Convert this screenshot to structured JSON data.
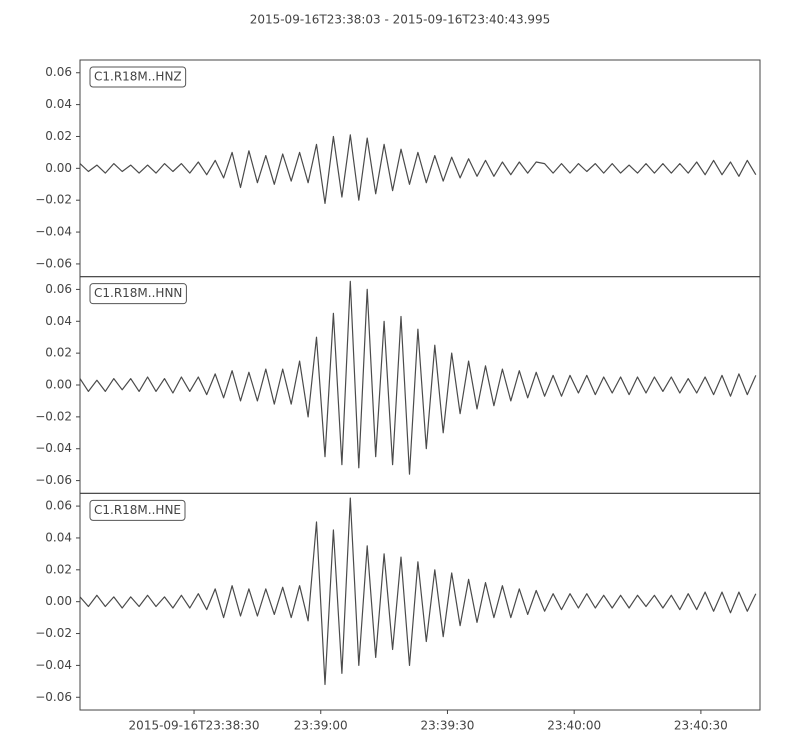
{
  "title": "2015-09-16T23:38:03  -  2015-09-16T23:40:43.995",
  "chart_data": [
    {
      "type": "line",
      "xlim": [
        3,
        163.995
      ],
      "ylim": [
        -0.068,
        0.068
      ],
      "yticks": [
        {
          "value": -0.06,
          "label": "−0.06"
        },
        {
          "value": -0.04,
          "label": "−0.04"
        },
        {
          "value": -0.02,
          "label": "−0.02"
        },
        {
          "value": 0,
          "label": "0.00"
        },
        {
          "value": 0.02,
          "label": "0.02"
        },
        {
          "value": 0.04,
          "label": "0.04"
        },
        {
          "value": 0.06,
          "label": "0.06"
        }
      ],
      "x": [
        3,
        5,
        7,
        9,
        11,
        13,
        15,
        17,
        19,
        21,
        23,
        25,
        27,
        29,
        31,
        33,
        35,
        37,
        39,
        41,
        43,
        45,
        47,
        49,
        51,
        53,
        55,
        57,
        59,
        61,
        63,
        65,
        67,
        69,
        71,
        73,
        75,
        77,
        79,
        81,
        83,
        85,
        87,
        89,
        91,
        93,
        95,
        97,
        99,
        101,
        103,
        105,
        107,
        109,
        111,
        113,
        115,
        117,
        119,
        121,
        123,
        125,
        127,
        129,
        131,
        133,
        135,
        137,
        139,
        141,
        143,
        145,
        147,
        149,
        151,
        153,
        155,
        157,
        159,
        161,
        163
      ],
      "series": [
        {
          "name": "C1.R18M..HNZ",
          "color": "#4b4b4b",
          "values": [
            0.003,
            -0.002,
            0.002,
            -0.003,
            0.003,
            -0.002,
            0.002,
            -0.003,
            0.002,
            -0.003,
            0.003,
            -0.002,
            0.003,
            -0.003,
            0.004,
            -0.004,
            0.005,
            -0.006,
            0.01,
            -0.012,
            0.011,
            -0.009,
            0.008,
            -0.01,
            0.009,
            -0.008,
            0.01,
            -0.009,
            0.015,
            -0.022,
            0.02,
            -0.018,
            0.021,
            -0.02,
            0.019,
            -0.016,
            0.015,
            -0.014,
            0.012,
            -0.01,
            0.01,
            -0.009,
            0.008,
            -0.008,
            0.007,
            -0.006,
            0.006,
            -0.005,
            0.005,
            -0.005,
            0.004,
            -0.004,
            0.004,
            -0.003,
            0.004,
            0.003,
            -0.003,
            0.003,
            -0.003,
            0.003,
            -0.002,
            0.003,
            -0.003,
            0.003,
            -0.003,
            0.002,
            -0.003,
            0.003,
            -0.003,
            0.003,
            -0.003,
            0.003,
            -0.003,
            0.004,
            -0.004,
            0.005,
            -0.004,
            0.004,
            -0.005,
            0.005,
            -0.004
          ]
        }
      ]
    },
    {
      "type": "line",
      "xlim": [
        3,
        163.995
      ],
      "ylim": [
        -0.068,
        0.068
      ],
      "yticks": [
        {
          "value": -0.06,
          "label": "−0.06"
        },
        {
          "value": -0.04,
          "label": "−0.04"
        },
        {
          "value": -0.02,
          "label": "−0.02"
        },
        {
          "value": 0,
          "label": "0.00"
        },
        {
          "value": 0.02,
          "label": "0.02"
        },
        {
          "value": 0.04,
          "label": "0.04"
        },
        {
          "value": 0.06,
          "label": "0.06"
        }
      ],
      "x": [
        3,
        5,
        7,
        9,
        11,
        13,
        15,
        17,
        19,
        21,
        23,
        25,
        27,
        29,
        31,
        33,
        35,
        37,
        39,
        41,
        43,
        45,
        47,
        49,
        51,
        53,
        55,
        57,
        59,
        61,
        63,
        65,
        67,
        69,
        71,
        73,
        75,
        77,
        79,
        81,
        83,
        85,
        87,
        89,
        91,
        93,
        95,
        97,
        99,
        101,
        103,
        105,
        107,
        109,
        111,
        113,
        115,
        117,
        119,
        121,
        123,
        125,
        127,
        129,
        131,
        133,
        135,
        137,
        139,
        141,
        143,
        145,
        147,
        149,
        151,
        153,
        155,
        157,
        159,
        161,
        163
      ],
      "series": [
        {
          "name": "C1.R18M..HNN",
          "color": "#4b4b4b",
          "values": [
            0.004,
            -0.004,
            0.003,
            -0.004,
            0.004,
            -0.003,
            0.004,
            -0.004,
            0.005,
            -0.004,
            0.004,
            -0.005,
            0.005,
            -0.004,
            0.005,
            -0.006,
            0.007,
            -0.008,
            0.009,
            -0.01,
            0.008,
            -0.01,
            0.01,
            -0.012,
            0.01,
            -0.012,
            0.015,
            -0.02,
            0.03,
            -0.045,
            0.045,
            -0.05,
            0.065,
            -0.052,
            0.06,
            -0.045,
            0.04,
            -0.05,
            0.043,
            -0.056,
            0.035,
            -0.04,
            0.025,
            -0.03,
            0.02,
            -0.018,
            0.015,
            -0.015,
            0.012,
            -0.013,
            0.01,
            -0.01,
            0.009,
            -0.008,
            0.008,
            -0.007,
            0.006,
            -0.007,
            0.006,
            -0.005,
            0.006,
            -0.006,
            0.005,
            -0.005,
            0.005,
            -0.006,
            0.005,
            -0.005,
            0.005,
            -0.004,
            0.005,
            -0.005,
            0.004,
            -0.005,
            0.005,
            -0.006,
            0.006,
            -0.007,
            0.007,
            -0.006,
            0.006
          ]
        }
      ]
    },
    {
      "type": "line",
      "xlim": [
        3,
        163.995
      ],
      "ylim": [
        -0.068,
        0.068
      ],
      "yticks": [
        {
          "value": -0.06,
          "label": "−0.06"
        },
        {
          "value": -0.04,
          "label": "−0.04"
        },
        {
          "value": -0.02,
          "label": "−0.02"
        },
        {
          "value": 0,
          "label": "0.00"
        },
        {
          "value": 0.02,
          "label": "0.02"
        },
        {
          "value": 0.04,
          "label": "0.04"
        },
        {
          "value": 0.06,
          "label": "0.06"
        }
      ],
      "xticks": [
        {
          "value": 30,
          "label": "2015-09-16T23:38:30"
        },
        {
          "value": 60,
          "label": "23:39:00"
        },
        {
          "value": 90,
          "label": "23:39:30"
        },
        {
          "value": 120,
          "label": "23:40:00"
        },
        {
          "value": 150,
          "label": "23:40:30"
        }
      ],
      "x": [
        3,
        5,
        7,
        9,
        11,
        13,
        15,
        17,
        19,
        21,
        23,
        25,
        27,
        29,
        31,
        33,
        35,
        37,
        39,
        41,
        43,
        45,
        47,
        49,
        51,
        53,
        55,
        57,
        59,
        61,
        63,
        65,
        67,
        69,
        71,
        73,
        75,
        77,
        79,
        81,
        83,
        85,
        87,
        89,
        91,
        93,
        95,
        97,
        99,
        101,
        103,
        105,
        107,
        109,
        111,
        113,
        115,
        117,
        119,
        121,
        123,
        125,
        127,
        129,
        131,
        133,
        135,
        137,
        139,
        141,
        143,
        145,
        147,
        149,
        151,
        153,
        155,
        157,
        159,
        161,
        163
      ],
      "series": [
        {
          "name": "C1.R18M..HNE",
          "color": "#4b4b4b",
          "values": [
            0.003,
            -0.003,
            0.004,
            -0.003,
            0.003,
            -0.004,
            0.003,
            -0.003,
            0.004,
            -0.003,
            0.003,
            -0.004,
            0.004,
            -0.004,
            0.005,
            -0.005,
            0.008,
            -0.01,
            0.01,
            -0.009,
            0.008,
            -0.009,
            0.008,
            -0.008,
            0.009,
            -0.01,
            0.01,
            -0.012,
            0.05,
            -0.052,
            0.045,
            -0.045,
            0.065,
            -0.04,
            0.035,
            -0.035,
            0.03,
            -0.03,
            0.028,
            -0.04,
            0.025,
            -0.025,
            0.02,
            -0.022,
            0.018,
            -0.015,
            0.014,
            -0.013,
            0.012,
            -0.01,
            0.01,
            -0.01,
            0.008,
            -0.008,
            0.007,
            -0.006,
            0.005,
            -0.005,
            0.005,
            -0.004,
            0.005,
            -0.004,
            0.004,
            -0.004,
            0.004,
            -0.004,
            0.004,
            -0.003,
            0.004,
            -0.004,
            0.004,
            -0.005,
            0.005,
            -0.005,
            0.006,
            -0.006,
            0.006,
            -0.007,
            0.006,
            -0.006,
            0.005
          ]
        }
      ]
    }
  ]
}
